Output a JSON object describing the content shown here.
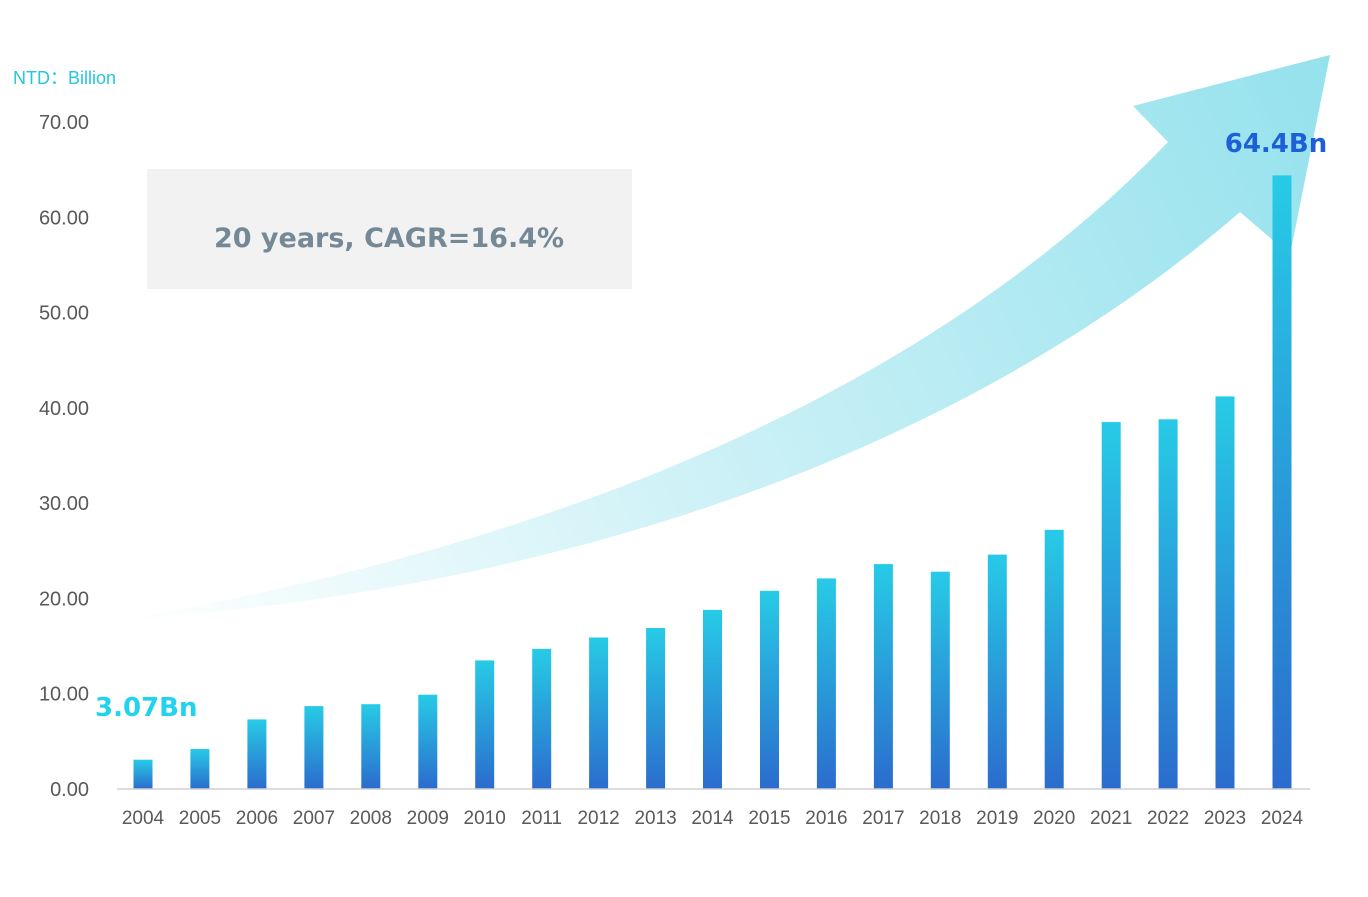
{
  "chart_data": {
    "type": "bar",
    "unit_label": "NTD：Billion",
    "categories": [
      "2004",
      "2005",
      "2006",
      "2007",
      "2008",
      "2009",
      "2010",
      "2011",
      "2012",
      "2013",
      "2014",
      "2015",
      "2016",
      "2017",
      "2018",
      "2019",
      "2020",
      "2021",
      "2022",
      "2023",
      "2024"
    ],
    "values": [
      3.07,
      4.2,
      7.3,
      8.7,
      8.9,
      9.9,
      13.5,
      14.7,
      15.9,
      16.9,
      18.8,
      20.8,
      22.1,
      23.6,
      22.8,
      24.6,
      27.2,
      38.5,
      38.8,
      41.2,
      64.4
    ],
    "ylim": [
      0,
      70
    ],
    "yticks": [
      "0.00",
      "10.00",
      "20.00",
      "30.00",
      "40.00",
      "50.00",
      "60.00",
      "70.00"
    ],
    "annotations": {
      "first": "3.07Bn",
      "last": "64.4Bn",
      "cagr": "20 years, CAGR=16.4%"
    },
    "colors": {
      "bar_top": "#27cbe6",
      "bar_bottom": "#2b6ccd",
      "arrow": "#8fe0ec",
      "cagr_box": "#f2f2f2",
      "axis": "#d0d0d0"
    },
    "grid": false,
    "legend": "none"
  }
}
